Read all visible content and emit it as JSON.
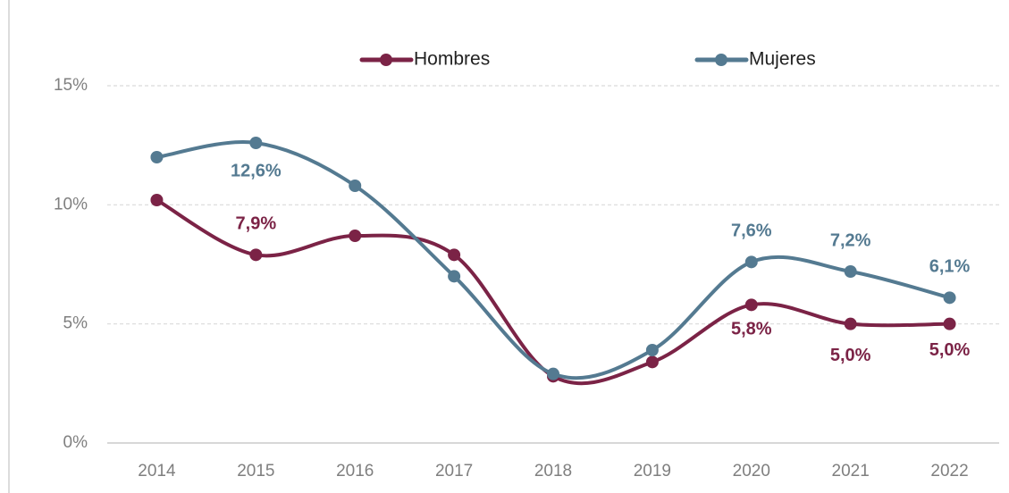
{
  "chart_data": {
    "type": "line",
    "categories": [
      "2014",
      "2015",
      "2016",
      "2017",
      "2018",
      "2019",
      "2020",
      "2021",
      "2022"
    ],
    "series": [
      {
        "name": "Hombres",
        "color": "#7b2346",
        "values": [
          10.2,
          7.9,
          8.7,
          7.9,
          2.8,
          3.4,
          5.8,
          5.0,
          5.0
        ],
        "value_labels": [
          null,
          "7,9%",
          null,
          null,
          null,
          null,
          "5,8%",
          "5,0%",
          "5,0%"
        ]
      },
      {
        "name": "Mujeres",
        "color": "#547a91",
        "values": [
          12.0,
          12.6,
          10.8,
          7.0,
          2.9,
          3.9,
          7.6,
          7.2,
          6.1
        ],
        "value_labels": [
          null,
          "12,6%",
          null,
          null,
          null,
          null,
          "7,6%",
          "7,2%",
          "6,1%"
        ]
      }
    ],
    "ylim": [
      0,
      15
    ],
    "yticks": [
      {
        "value": 0,
        "label": "0%"
      },
      {
        "value": 5,
        "label": "5%"
      },
      {
        "value": 10,
        "label": "10%"
      },
      {
        "value": 15,
        "label": "15%"
      }
    ],
    "grid": true,
    "legend": "top"
  }
}
